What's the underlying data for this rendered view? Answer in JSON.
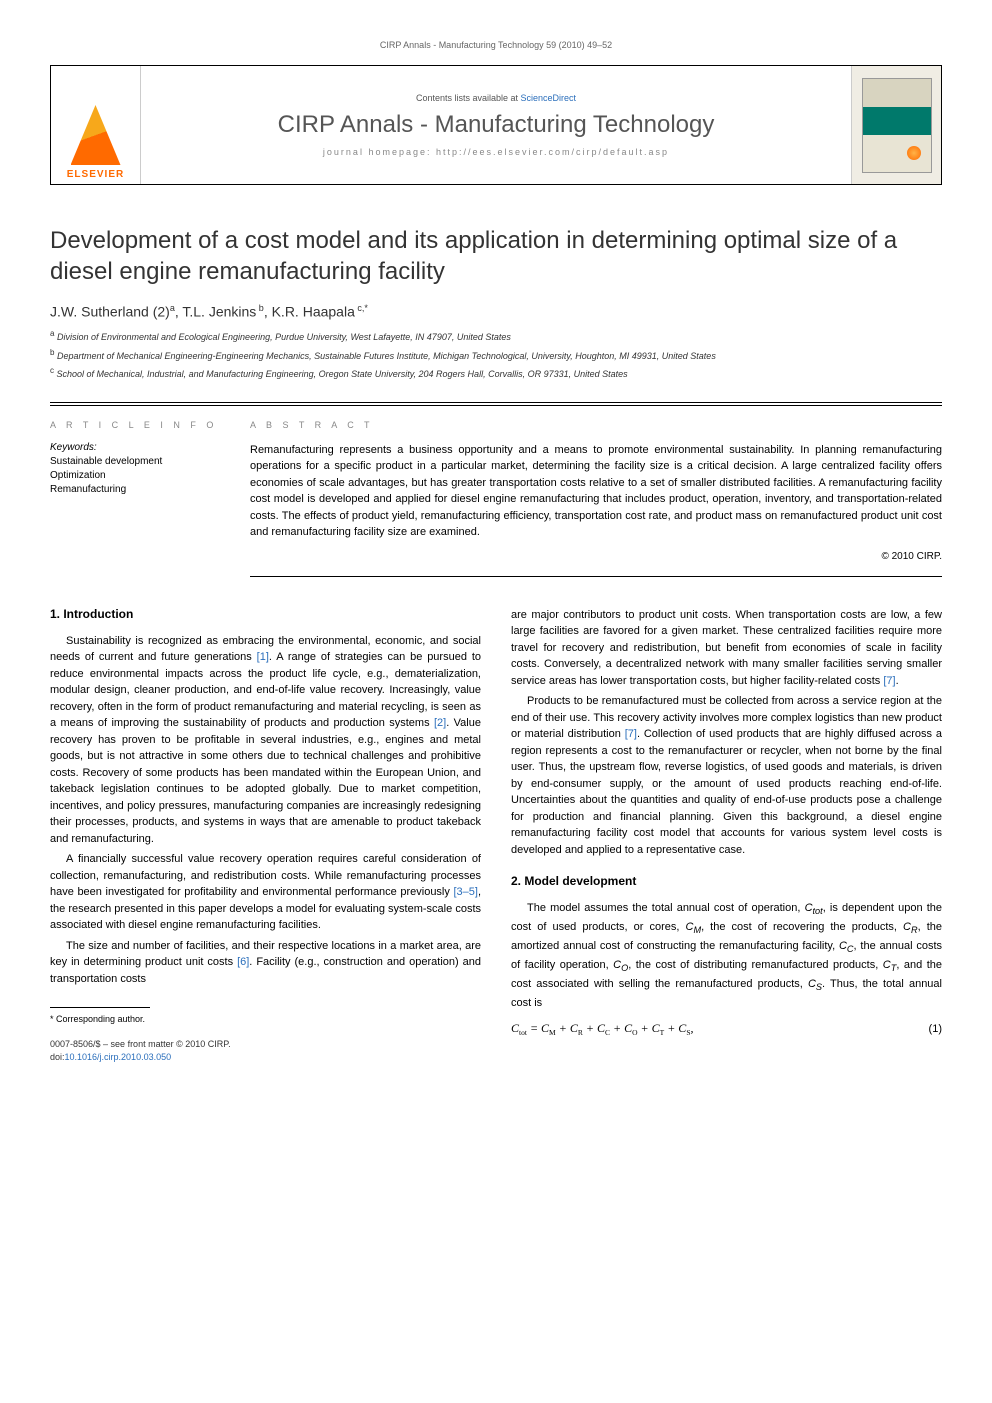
{
  "header": {
    "running": "CIRP Annals - Manufacturing Technology 59 (2010) 49–52"
  },
  "banner": {
    "publisher": "ELSEVIER",
    "contents_prefix": "Contents lists available at ",
    "contents_link": "ScienceDirect",
    "journal_name": "CIRP Annals - Manufacturing Technology",
    "homepage": "journal homepage: http://ees.elsevier.com/cirp/default.asp"
  },
  "article": {
    "title": "Development of a cost model and its application in determining optimal size of a diesel engine remanufacturing facility",
    "authors_html": "J.W. Sutherland (2)<sup>a</sup>, T.L. Jenkins<sup> b</sup>, K.R. Haapala<sup> c,*</sup>",
    "affiliations": [
      {
        "sup": "a",
        "text": "Division of Environmental and Ecological Engineering, Purdue University, West Lafayette, IN 47907, United States"
      },
      {
        "sup": "b",
        "text": "Department of Mechanical Engineering-Engineering Mechanics, Sustainable Futures Institute, Michigan Technological, University, Houghton, MI 49931, United States"
      },
      {
        "sup": "c",
        "text": "School of Mechanical, Industrial, and Manufacturing Engineering, Oregon State University, 204 Rogers Hall, Corvallis, OR 97331, United States"
      }
    ],
    "info_heading": "A R T I C L E  I N F O",
    "abs_heading": "A B S T R A C T",
    "keywords_label": "Keywords:",
    "keywords": [
      "Sustainable development",
      "Optimization",
      "Remanufacturing"
    ],
    "abstract": "Remanufacturing represents a business opportunity and a means to promote environmental sustainability. In planning remanufacturing operations for a specific product in a particular market, determining the facility size is a critical decision. A large centralized facility offers economies of scale advantages, but has greater transportation costs relative to a set of smaller distributed facilities. A remanufacturing facility cost model is developed and applied for diesel engine remanufacturing that includes product, operation, inventory, and transportation-related costs. The effects of product yield, remanufacturing efficiency, transportation cost rate, and product mass on remanufactured product unit cost and remanufacturing facility size are examined.",
    "copyright": "© 2010 CIRP."
  },
  "body": {
    "sec1_h": "1. Introduction",
    "sec1_p1": "Sustainability is recognized as embracing the environmental, economic, and social needs of current and future generations [1]. A range of strategies can be pursued to reduce environmental impacts across the product life cycle, e.g., dematerialization, modular design, cleaner production, and end-of-life value recovery. Increasingly, value recovery, often in the form of product remanufacturing and material recycling, is seen as a means of improving the sustainability of products and production systems [2]. Value recovery has proven to be profitable in several industries, e.g., engines and metal goods, but is not attractive in some others due to technical challenges and prohibitive costs. Recovery of some products has been mandated within the European Union, and takeback legislation continues to be adopted globally. Due to market competition, incentives, and policy pressures, manufacturing companies are increasingly redesigning their processes, products, and systems in ways that are amenable to product takeback and remanufacturing.",
    "sec1_p2": "A financially successful value recovery operation requires careful consideration of collection, remanufacturing, and redistribution costs. While remanufacturing processes have been investigated for profitability and environmental performance previously [3–5], the research presented in this paper develops a model for evaluating system-scale costs associated with diesel engine remanufacturing facilities.",
    "sec1_p3": "The size and number of facilities, and their respective locations in a market area, are key in determining product unit costs [6]. Facility (e.g., construction and operation) and transportation costs",
    "sec1_p4": "are major contributors to product unit costs. When transportation costs are low, a few large facilities are favored for a given market. These centralized facilities require more travel for recovery and redistribution, but benefit from economies of scale in facility costs. Conversely, a decentralized network with many smaller facilities serving smaller service areas has lower transportation costs, but higher facility-related costs [7].",
    "sec1_p5": "Products to be remanufactured must be collected from across a service region at the end of their use. This recovery activity involves more complex logistics than new product or material distribution [7]. Collection of used products that are highly diffused across a region represents a cost to the remanufacturer or recycler, when not borne by the final user. Thus, the upstream flow, reverse logistics, of used goods and materials, is driven by end-consumer supply, or the amount of used products reaching end-of-life. Uncertainties about the quantities and quality of end-of-use products pose a challenge for production and financial planning. Given this background, a diesel engine remanufacturing facility cost model that accounts for various system level costs is developed and applied to a representative case.",
    "sec2_h": "2. Model development",
    "sec2_p1_a": "The model assumes the total annual cost of operation, ",
    "sec2_p1_b": ", is dependent upon the cost of used products, or cores, ",
    "sec2_p1_c": ", the cost of recovering the products, ",
    "sec2_p1_d": ", the amortized annual cost of constructing the remanufacturing facility, ",
    "sec2_p1_e": ", the annual costs of facility operation, ",
    "sec2_p1_f": ", the cost of distributing remanufactured products, ",
    "sec2_p1_g": ", and the cost associated with selling the remanufactured products, ",
    "sec2_p1_h": ". Thus, the total annual cost is",
    "eq1_num": "(1)"
  },
  "footnotes": {
    "corr": "* Corresponding author.",
    "issn": "0007-8506/$ – see front matter © 2010 CIRP.",
    "doi_label": "doi:",
    "doi": "10.1016/j.cirp.2010.03.050"
  },
  "colors": {
    "link": "#2a6ebb",
    "orange": "#ff6a00"
  }
}
